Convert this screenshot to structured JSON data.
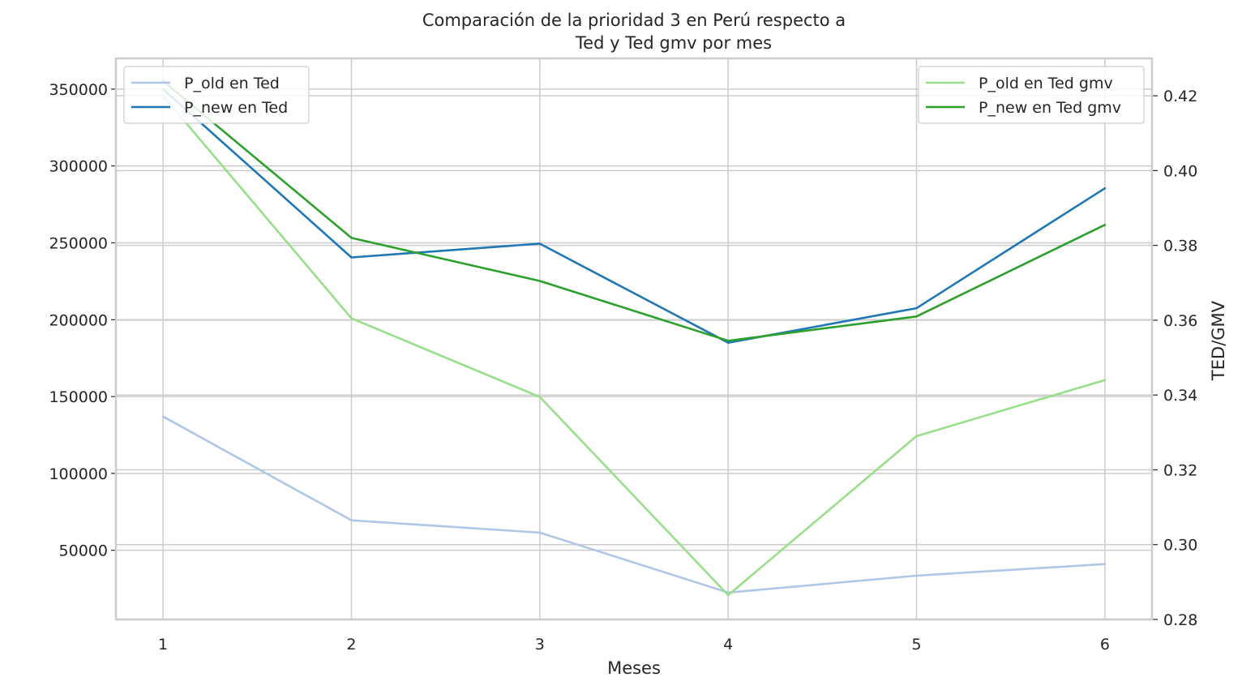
{
  "chart_data": {
    "type": "line",
    "title": [
      "Comparación de la prioridad 3 en Perú respecto a",
      "Ted y Ted gmv por mes"
    ],
    "xlabel": "Meses",
    "ylabel_left": "",
    "ylabel_right": "TED/GMV",
    "x": [
      1,
      2,
      3,
      4,
      5,
      6
    ],
    "x_tick_labels": [
      "1",
      "2",
      "3",
      "4",
      "5",
      "6"
    ],
    "xlim": [
      0.75,
      6.25
    ],
    "ylim_left": [
      5000,
      370000
    ],
    "yticks_left": [
      50000,
      100000,
      150000,
      200000,
      250000,
      300000,
      350000
    ],
    "ytick_labels_left": [
      "50000",
      "100000",
      "150000",
      "200000",
      "250000",
      "300000",
      "350000"
    ],
    "ylim_right": [
      0.28,
      0.43
    ],
    "yticks_right": [
      0.28,
      0.3,
      0.32,
      0.34,
      0.36,
      0.38,
      0.4,
      0.42
    ],
    "ytick_labels_right": [
      "0.28",
      "0.30",
      "0.32",
      "0.34",
      "0.36",
      "0.38",
      "0.40",
      "0.42"
    ],
    "grid": true,
    "series_left": [
      {
        "name": "P_old en Ted",
        "color": "#aec7e8",
        "values": [
          137000,
          69500,
          61500,
          22500,
          33500,
          41000
        ]
      },
      {
        "name": "P_new en Ted",
        "color": "#1f77b4",
        "values": [
          350000,
          240500,
          249500,
          185000,
          207500,
          285500
        ]
      }
    ],
    "series_right": [
      {
        "name": "P_old en Ted gmv",
        "color": "#98df8a",
        "values": [
          0.42,
          0.3605,
          0.3395,
          0.2865,
          0.329,
          0.344
        ]
      },
      {
        "name": "P_new en Ted gmv",
        "color": "#2ca02c",
        "values": [
          0.424,
          0.382,
          0.3705,
          0.3545,
          0.361,
          0.3855
        ]
      }
    ],
    "legend_left_position": "upper-left",
    "legend_right_position": "upper-right"
  }
}
